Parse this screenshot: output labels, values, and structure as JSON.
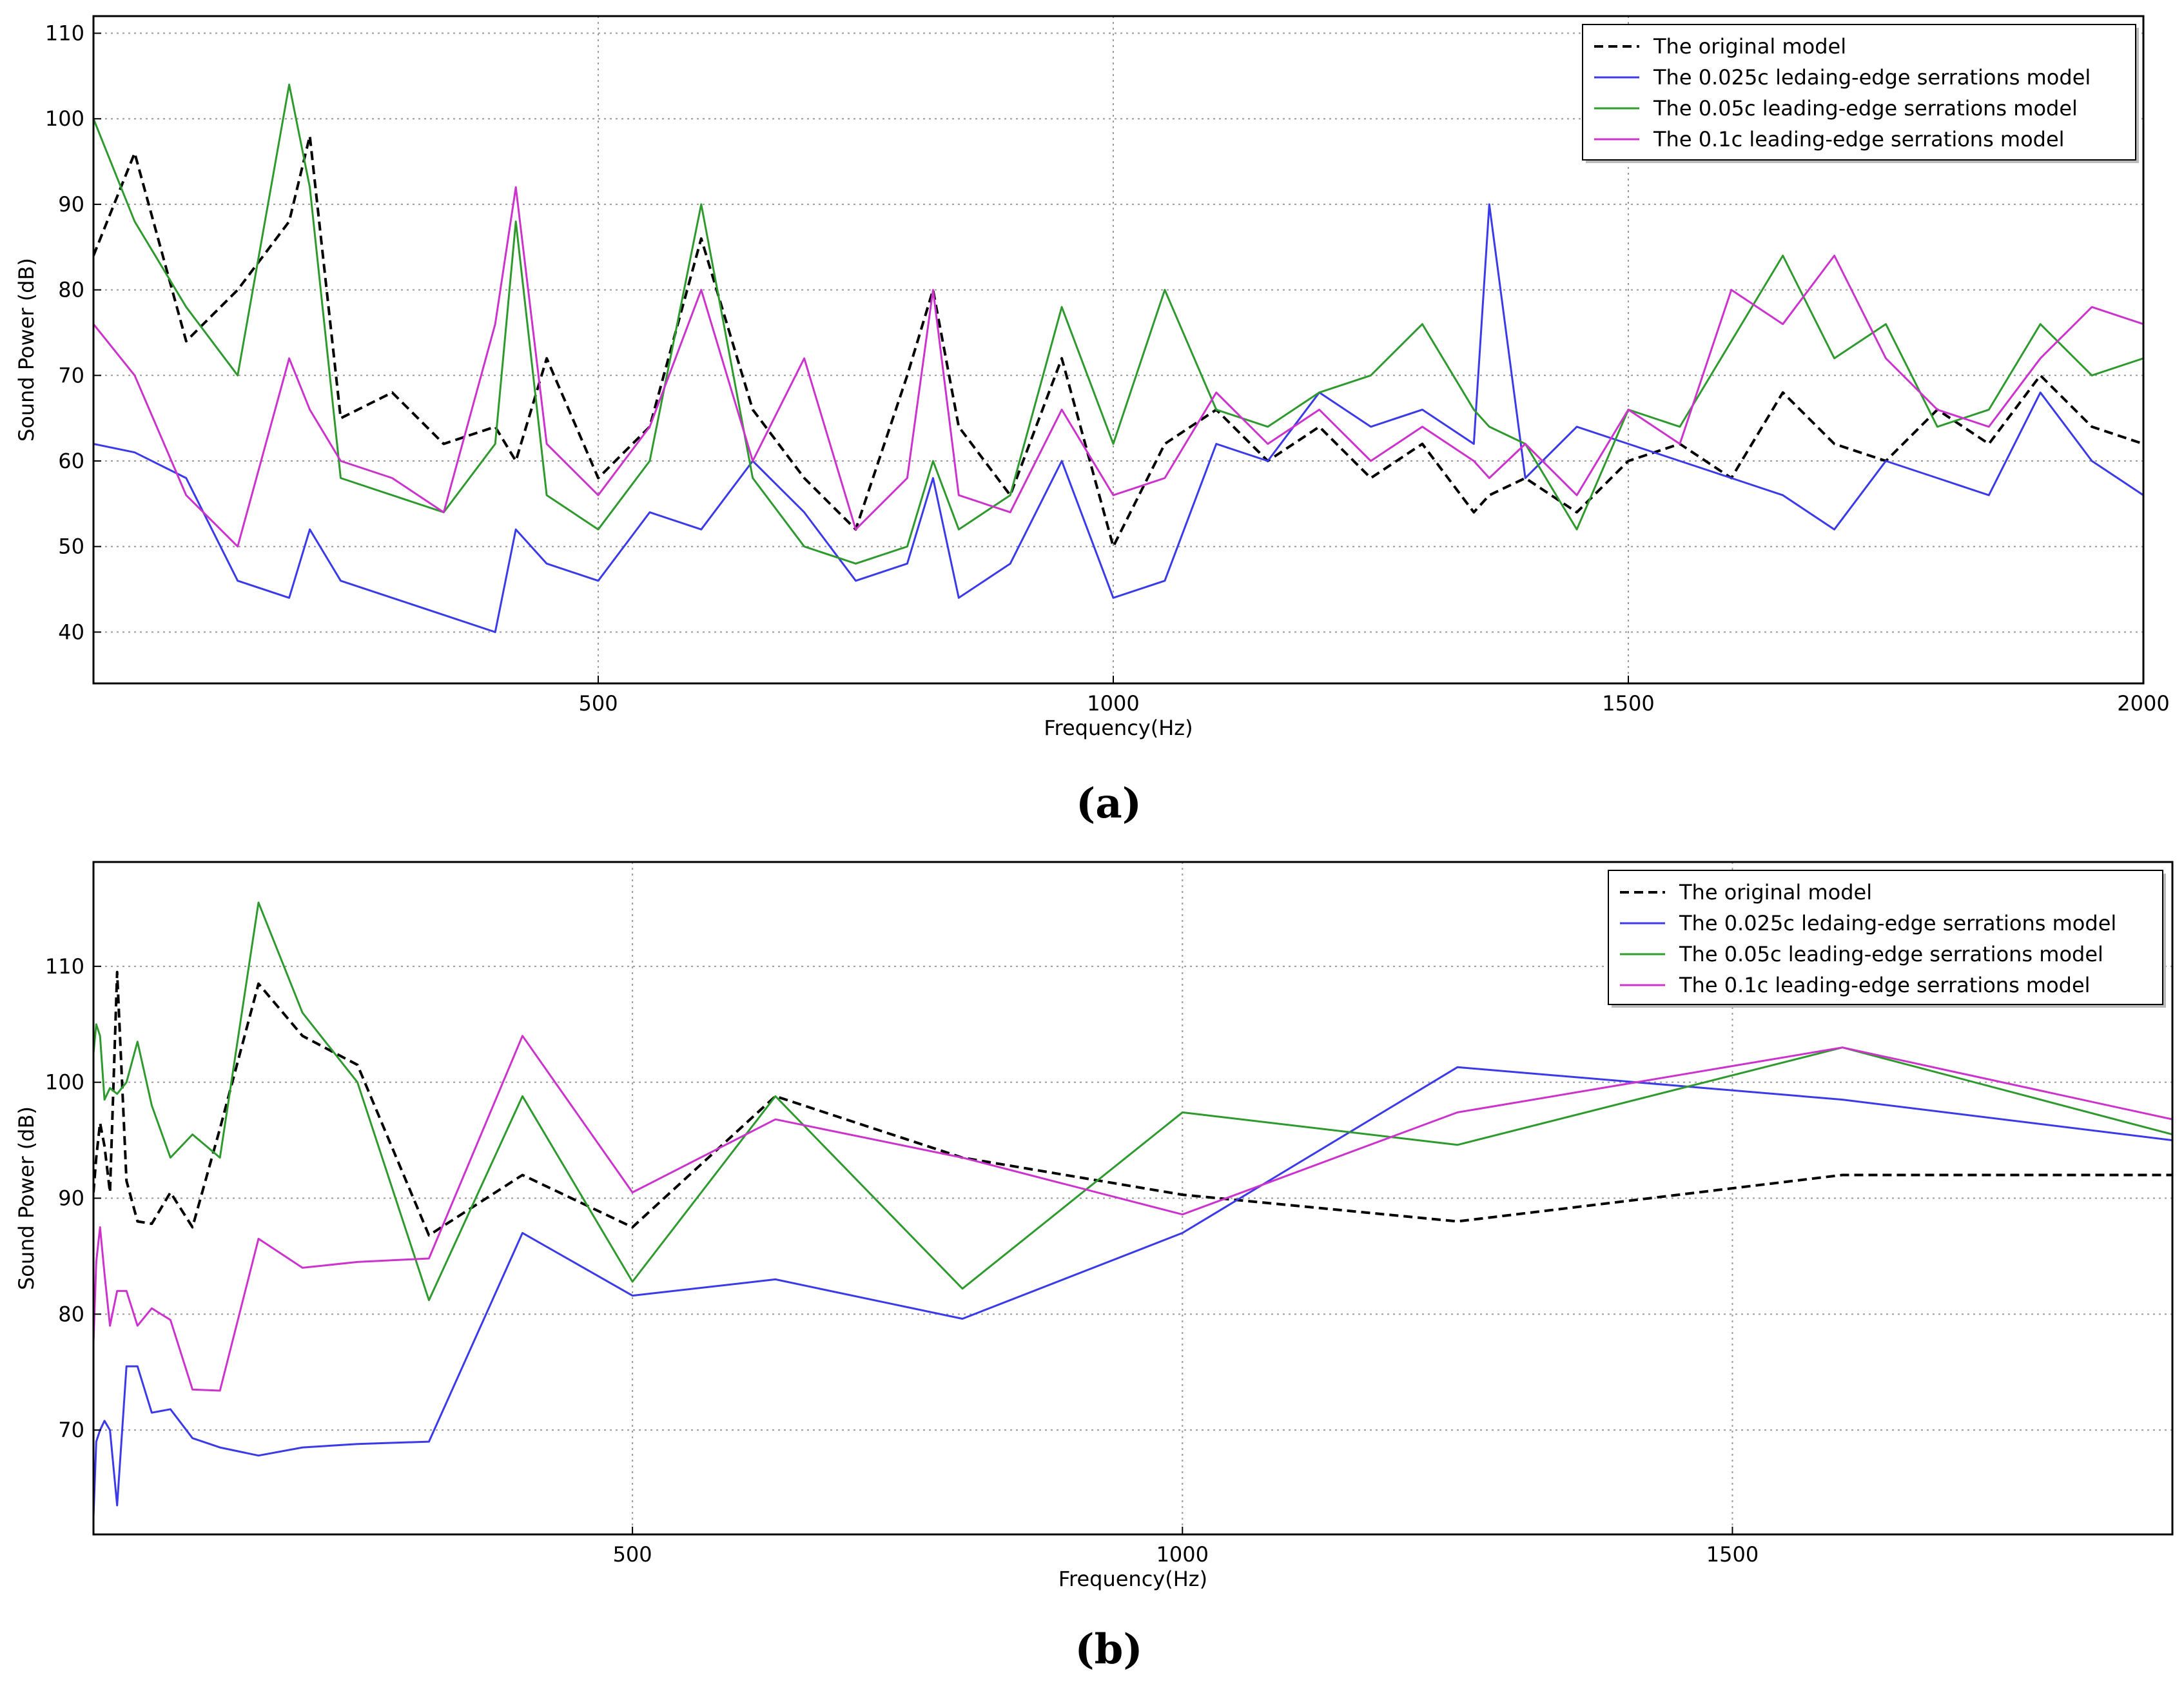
{
  "figure": {
    "panels": [
      "(a)",
      "(b)"
    ]
  },
  "colors": {
    "original": "#000000",
    "s0025": "#3a3ae8",
    "s005": "#2e9a2e",
    "s01": "#cc33cc",
    "grid": "#9a9a9a",
    "axis": "#000000"
  },
  "chart_data": [
    {
      "type": "line",
      "panel": "(a)",
      "title": "",
      "xlabel": "Frequency(Hz)",
      "ylabel": "Sound Power (dB)",
      "xlim": [
        10,
        2000
      ],
      "ylim": [
        34,
        112
      ],
      "xticks": [
        500,
        1000,
        1500,
        2000
      ],
      "xtick_labels": [
        "500",
        "1000",
        "1500",
        "2000"
      ],
      "yticks": [
        40,
        50,
        60,
        70,
        80,
        90,
        100,
        110
      ],
      "ytick_labels": [
        "40",
        "50",
        "60",
        "70",
        "80",
        "90",
        "100",
        "110"
      ],
      "grid": true,
      "legend_position": "top-right",
      "x": [
        10,
        50,
        100,
        150,
        200,
        220,
        250,
        300,
        350,
        400,
        420,
        450,
        500,
        550,
        600,
        650,
        700,
        750,
        800,
        825,
        850,
        900,
        950,
        1000,
        1050,
        1100,
        1150,
        1200,
        1250,
        1300,
        1350,
        1365,
        1400,
        1450,
        1500,
        1550,
        1600,
        1650,
        1700,
        1750,
        1800,
        1850,
        1900,
        1950,
        2000
      ],
      "series": [
        {
          "name": "The original model",
          "style": "dashed",
          "colorKey": "original",
          "values": [
            84,
            96,
            74,
            80,
            88,
            98,
            65,
            68,
            62,
            64,
            60,
            72,
            58,
            64,
            86,
            66,
            58,
            52,
            70,
            80,
            64,
            56,
            72,
            50,
            62,
            66,
            60,
            64,
            58,
            62,
            54,
            56,
            58,
            54,
            60,
            62,
            58,
            68,
            62,
            60,
            66,
            62,
            70,
            64,
            62
          ]
        },
        {
          "name": "The 0.025c ledaing-edge serrations model",
          "style": "solid",
          "colorKey": "s0025",
          "values": [
            62,
            61,
            58,
            46,
            44,
            52,
            46,
            44,
            42,
            40,
            52,
            48,
            46,
            54,
            52,
            60,
            54,
            46,
            48,
            58,
            44,
            48,
            60,
            44,
            46,
            62,
            60,
            68,
            64,
            66,
            62,
            90,
            58,
            64,
            62,
            60,
            58,
            56,
            52,
            60,
            58,
            56,
            68,
            60,
            56
          ]
        },
        {
          "name": "The 0.05c leading-edge serrations model",
          "style": "solid",
          "colorKey": "s005",
          "values": [
            100,
            88,
            78,
            70,
            104,
            92,
            58,
            56,
            54,
            62,
            88,
            56,
            52,
            60,
            90,
            58,
            50,
            48,
            50,
            60,
            52,
            56,
            78,
            62,
            80,
            66,
            64,
            68,
            70,
            76,
            66,
            64,
            62,
            52,
            66,
            64,
            74,
            84,
            72,
            76,
            64,
            66,
            76,
            70,
            72
          ]
        },
        {
          "name": "The 0.1c leading-edge serrations model",
          "style": "solid",
          "colorKey": "s01",
          "values": [
            76,
            70,
            56,
            50,
            72,
            66,
            60,
            58,
            54,
            76,
            92,
            62,
            56,
            64,
            80,
            60,
            72,
            52,
            58,
            80,
            56,
            54,
            66,
            56,
            58,
            68,
            62,
            66,
            60,
            64,
            60,
            58,
            62,
            56,
            66,
            62,
            80,
            76,
            84,
            72,
            66,
            64,
            72,
            78,
            76
          ]
        }
      ]
    },
    {
      "type": "line",
      "panel": "(b)",
      "title": "",
      "xlabel": "Frequency(Hz)",
      "ylabel": "Sound Power (dB)",
      "xlim": [
        10,
        1900
      ],
      "ylim": [
        61,
        119
      ],
      "xticks": [
        500,
        1000,
        1500
      ],
      "xtick_labels": [
        "500",
        "1000",
        "1500"
      ],
      "yticks": [
        70,
        80,
        90,
        100,
        110
      ],
      "ytick_labels": [
        "70",
        "80",
        "90",
        "100",
        "110"
      ],
      "grid": true,
      "legend_position": "top-right",
      "x": [
        10,
        12.5,
        16,
        20,
        25,
        31.5,
        40,
        50,
        63,
        80,
        100,
        125,
        160,
        200,
        250,
        315,
        400,
        500,
        630,
        800,
        1000,
        1250,
        1600,
        1900
      ],
      "series": [
        {
          "name": "The original model",
          "style": "dashed",
          "colorKey": "original",
          "values": [
            90.5,
            93.5,
            96.5,
            94.5,
            90.5,
            109.5,
            91.5,
            88,
            87.8,
            90.5,
            87.5,
            96,
            108.5,
            104,
            101.5,
            86.8,
            92,
            87.5,
            98.8,
            93.5,
            90.3,
            88,
            92,
            92
          ]
        },
        {
          "name": "The 0.025c ledaing-edge serrations model",
          "style": "solid",
          "colorKey": "s0025",
          "values": [
            62.5,
            69,
            70,
            70.8,
            70,
            63.5,
            75.5,
            75.5,
            71.5,
            71.8,
            69.3,
            68.5,
            67.8,
            68.5,
            68.8,
            69,
            87,
            81.6,
            83,
            79.6,
            87,
            101.3,
            98.5,
            95
          ]
        },
        {
          "name": "The 0.05c leading-edge serrations model",
          "style": "solid",
          "colorKey": "s005",
          "values": [
            102.5,
            105,
            104,
            98.5,
            99.5,
            99,
            100,
            103.5,
            98,
            93.5,
            95.5,
            93.5,
            115.5,
            106,
            100,
            81.2,
            98.8,
            82.8,
            98.8,
            82.2,
            97.4,
            94.6,
            103,
            95.5
          ]
        },
        {
          "name": "The 0.1c leading-edge serrations model",
          "style": "solid",
          "colorKey": "s01",
          "values": [
            77.5,
            84.5,
            87.5,
            83.5,
            79,
            82,
            82,
            79,
            80.5,
            79.5,
            73.5,
            73.4,
            86.5,
            84,
            84.5,
            84.8,
            104,
            90.5,
            96.8,
            93.5,
            88.6,
            97.4,
            103,
            96.8
          ]
        }
      ]
    }
  ]
}
